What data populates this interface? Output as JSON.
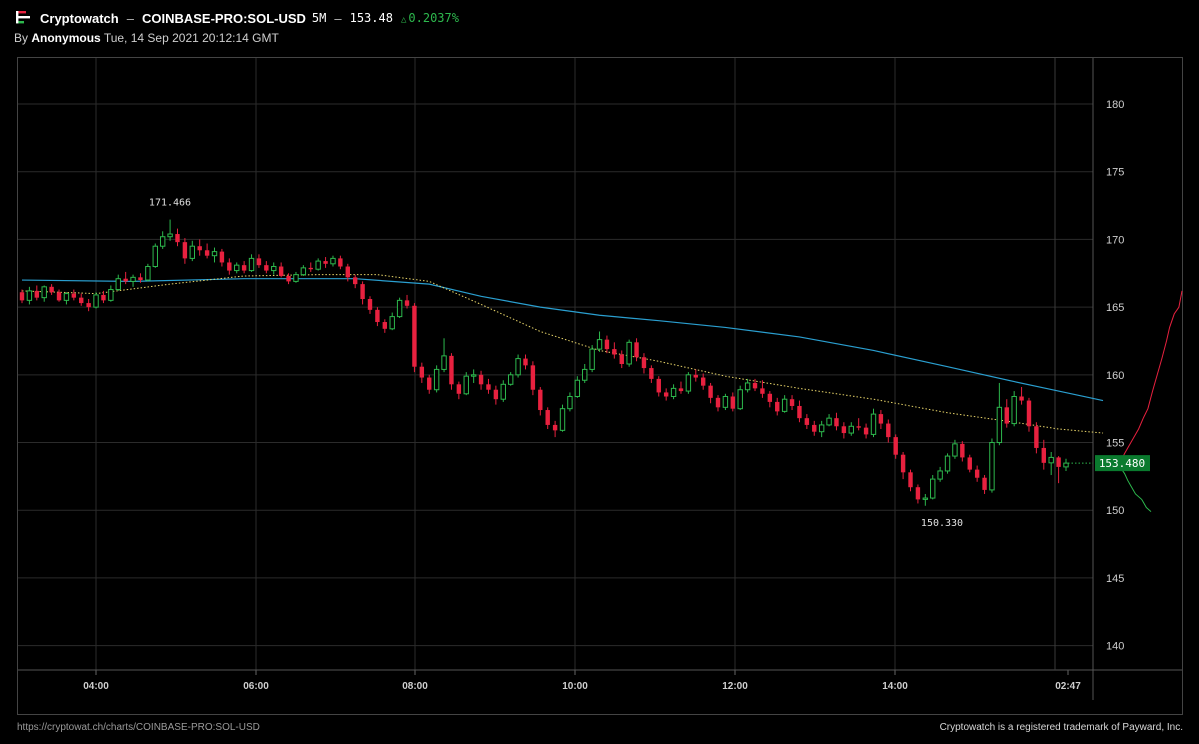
{
  "header": {
    "brand": "Cryptowatch",
    "separator": "–",
    "symbol": "COINBASE-PRO:SOL-USD",
    "interval": "5M",
    "price": "153.48",
    "change": "0.2037%",
    "by_prefix": "By",
    "author": "Anonymous",
    "timestamp": "Tue, 14 Sep 2021 20:12:14 GMT"
  },
  "footer": {
    "url": "https://cryptowat.ch/charts/COINBASE-PRO:SOL-USD",
    "trademark": "Cryptowatch is a registered trademark of Payward, Inc."
  },
  "colors": {
    "up": "#2db84d",
    "down": "#e8213f",
    "ma_long": "#2a9fd0",
    "ma_short": "#e8d56a",
    "grid": "#2b2b2b",
    "current_price_bg": "#0a7a2e"
  },
  "chart_data": {
    "type": "candlestick",
    "time_labels": [
      "04:00",
      "06:00",
      "08:00",
      "10:00",
      "12:00",
      "14:00",
      "02:47"
    ],
    "y_ticks": [
      140,
      145,
      150,
      155,
      160,
      165,
      170,
      175,
      180
    ],
    "ylim": [
      138.2,
      183.4
    ],
    "grid": true,
    "annotations": {
      "high_label": "171.466",
      "high_value": 171.466,
      "low_label": "150.330",
      "low_value": 150.33,
      "current_label": "153.480",
      "current_value": 153.48
    },
    "candles_ohlc": [
      [
        166.1,
        166.3,
        165.3,
        165.5
      ],
      [
        165.5,
        166.5,
        165.2,
        166.2
      ],
      [
        166.2,
        166.6,
        165.5,
        165.7
      ],
      [
        165.7,
        166.6,
        165.4,
        166.5
      ],
      [
        166.5,
        166.7,
        165.9,
        166.1
      ],
      [
        166.1,
        166.3,
        165.4,
        165.5
      ],
      [
        165.5,
        166.1,
        165.2,
        166.0
      ],
      [
        166.0,
        166.3,
        165.5,
        165.7
      ],
      [
        165.7,
        166.0,
        165.1,
        165.3
      ],
      [
        165.3,
        165.6,
        164.7,
        165.0
      ],
      [
        165.0,
        166.1,
        164.9,
        165.9
      ],
      [
        165.9,
        166.2,
        165.3,
        165.5
      ],
      [
        165.5,
        166.6,
        165.4,
        166.3
      ],
      [
        166.3,
        167.4,
        166.2,
        167.1
      ],
      [
        167.1,
        167.6,
        166.7,
        166.9
      ],
      [
        166.9,
        167.4,
        166.5,
        167.2
      ],
      [
        167.2,
        167.5,
        166.8,
        167.0
      ],
      [
        167.0,
        168.2,
        166.9,
        168.0
      ],
      [
        168.0,
        169.7,
        167.9,
        169.5
      ],
      [
        169.5,
        170.6,
        169.3,
        170.2
      ],
      [
        170.2,
        171.466,
        169.9,
        170.4
      ],
      [
        170.4,
        170.8,
        169.5,
        169.8
      ],
      [
        169.8,
        170.1,
        168.2,
        168.6
      ],
      [
        168.6,
        169.9,
        168.4,
        169.5
      ],
      [
        169.5,
        170.0,
        168.8,
        169.2
      ],
      [
        169.2,
        169.7,
        168.6,
        168.8
      ],
      [
        168.8,
        169.4,
        168.3,
        169.1
      ],
      [
        169.1,
        169.3,
        168.0,
        168.3
      ],
      [
        168.3,
        168.6,
        167.4,
        167.7
      ],
      [
        167.7,
        168.3,
        167.5,
        168.1
      ],
      [
        168.1,
        168.4,
        167.5,
        167.7
      ],
      [
        167.7,
        168.9,
        167.6,
        168.6
      ],
      [
        168.6,
        168.9,
        167.9,
        168.1
      ],
      [
        168.1,
        168.4,
        167.5,
        167.7
      ],
      [
        167.7,
        168.3,
        167.4,
        168.0
      ],
      [
        168.0,
        168.3,
        167.2,
        167.3
      ],
      [
        167.3,
        167.5,
        166.7,
        166.9
      ],
      [
        166.9,
        167.6,
        166.8,
        167.4
      ],
      [
        167.4,
        168.1,
        167.3,
        167.9
      ],
      [
        167.9,
        168.3,
        167.6,
        167.8
      ],
      [
        167.8,
        168.6,
        167.7,
        168.4
      ],
      [
        168.4,
        168.7,
        167.9,
        168.2
      ],
      [
        168.2,
        168.8,
        168.0,
        168.6
      ],
      [
        168.6,
        168.8,
        167.8,
        168.0
      ],
      [
        168.0,
        168.2,
        166.9,
        167.2
      ],
      [
        167.2,
        167.4,
        166.4,
        166.7
      ],
      [
        166.7,
        166.9,
        165.2,
        165.6
      ],
      [
        165.6,
        165.8,
        164.5,
        164.8
      ],
      [
        164.8,
        165.0,
        163.6,
        163.9
      ],
      [
        163.9,
        164.1,
        163.1,
        163.4
      ],
      [
        163.4,
        164.6,
        163.3,
        164.3
      ],
      [
        164.3,
        165.7,
        164.2,
        165.5
      ],
      [
        165.5,
        165.9,
        164.9,
        165.1
      ],
      [
        165.1,
        165.3,
        160.2,
        160.6
      ],
      [
        160.6,
        160.9,
        159.4,
        159.8
      ],
      [
        159.8,
        160.0,
        158.6,
        158.9
      ],
      [
        158.9,
        160.7,
        158.7,
        160.4
      ],
      [
        160.4,
        162.7,
        160.2,
        161.4
      ],
      [
        161.4,
        161.6,
        158.9,
        159.3
      ],
      [
        159.3,
        159.5,
        158.2,
        158.6
      ],
      [
        158.6,
        160.2,
        158.5,
        159.9
      ],
      [
        159.9,
        160.4,
        159.4,
        160.0
      ],
      [
        160.0,
        160.3,
        158.9,
        159.3
      ],
      [
        159.3,
        159.7,
        158.6,
        158.9
      ],
      [
        158.9,
        159.2,
        157.8,
        158.2
      ],
      [
        158.2,
        159.6,
        158.0,
        159.3
      ],
      [
        159.3,
        160.2,
        159.2,
        160.0
      ],
      [
        160.0,
        161.5,
        159.8,
        161.2
      ],
      [
        161.2,
        161.5,
        160.4,
        160.7
      ],
      [
        160.7,
        161.0,
        158.5,
        158.9
      ],
      [
        158.9,
        159.1,
        157.0,
        157.4
      ],
      [
        157.4,
        157.6,
        156.0,
        156.3
      ],
      [
        156.3,
        156.6,
        155.4,
        155.9
      ],
      [
        155.9,
        157.8,
        155.8,
        157.5
      ],
      [
        157.5,
        158.7,
        157.3,
        158.4
      ],
      [
        158.4,
        159.9,
        158.3,
        159.6
      ],
      [
        159.6,
        160.8,
        159.4,
        160.4
      ],
      [
        160.4,
        162.2,
        160.2,
        161.9
      ],
      [
        161.9,
        163.2,
        161.7,
        162.6
      ],
      [
        162.6,
        162.9,
        161.6,
        161.9
      ],
      [
        161.9,
        162.4,
        161.2,
        161.5
      ],
      [
        161.5,
        161.8,
        160.5,
        160.8
      ],
      [
        160.8,
        162.6,
        160.6,
        162.4
      ],
      [
        162.4,
        162.7,
        161.0,
        161.3
      ],
      [
        161.3,
        161.6,
        160.1,
        160.5
      ],
      [
        160.5,
        160.7,
        159.4,
        159.7
      ],
      [
        159.7,
        159.9,
        158.4,
        158.7
      ],
      [
        158.7,
        159.0,
        158.1,
        158.4
      ],
      [
        158.4,
        159.3,
        158.2,
        159.0
      ],
      [
        159.0,
        159.5,
        158.6,
        158.8
      ],
      [
        158.8,
        160.2,
        158.6,
        160.0
      ],
      [
        160.0,
        160.4,
        159.5,
        159.8
      ],
      [
        159.8,
        160.1,
        158.9,
        159.2
      ],
      [
        159.2,
        159.4,
        157.9,
        158.3
      ],
      [
        158.3,
        158.5,
        157.3,
        157.6
      ],
      [
        157.6,
        158.6,
        157.4,
        158.4
      ],
      [
        158.4,
        158.7,
        157.3,
        157.5
      ],
      [
        157.5,
        159.2,
        157.4,
        158.9
      ],
      [
        158.9,
        159.7,
        158.7,
        159.4
      ],
      [
        159.4,
        159.7,
        158.8,
        159.0
      ],
      [
        159.0,
        159.6,
        158.3,
        158.6
      ],
      [
        158.6,
        158.8,
        157.6,
        158.0
      ],
      [
        158.0,
        158.3,
        157.0,
        157.3
      ],
      [
        157.3,
        158.5,
        157.2,
        158.2
      ],
      [
        158.2,
        158.5,
        157.4,
        157.7
      ],
      [
        157.7,
        158.1,
        156.5,
        156.8
      ],
      [
        156.8,
        157.1,
        156.0,
        156.3
      ],
      [
        156.3,
        156.6,
        155.5,
        155.8
      ],
      [
        155.8,
        156.6,
        155.4,
        156.3
      ],
      [
        156.3,
        157.1,
        156.2,
        156.8
      ],
      [
        156.8,
        157.2,
        155.9,
        156.2
      ],
      [
        156.2,
        156.5,
        155.3,
        155.7
      ],
      [
        155.7,
        156.5,
        155.5,
        156.2
      ],
      [
        156.2,
        156.8,
        155.9,
        156.1
      ],
      [
        156.1,
        156.4,
        155.3,
        155.6
      ],
      [
        155.6,
        157.5,
        155.4,
        157.1
      ],
      [
        157.1,
        157.4,
        156.0,
        156.4
      ],
      [
        156.4,
        156.7,
        155.0,
        155.4
      ],
      [
        155.4,
        155.6,
        153.8,
        154.1
      ],
      [
        154.1,
        154.3,
        152.3,
        152.8
      ],
      [
        152.8,
        153.0,
        151.4,
        151.7
      ],
      [
        151.7,
        151.9,
        150.5,
        150.8
      ],
      [
        150.8,
        151.2,
        150.33,
        150.9
      ],
      [
        150.9,
        152.6,
        150.8,
        152.3
      ],
      [
        152.3,
        153.2,
        152.1,
        152.9
      ],
      [
        152.9,
        154.2,
        152.7,
        154.0
      ],
      [
        154.0,
        155.2,
        153.8,
        154.9
      ],
      [
        154.9,
        155.1,
        153.6,
        153.9
      ],
      [
        153.9,
        154.1,
        152.8,
        153.0
      ],
      [
        153.0,
        153.3,
        152.1,
        152.4
      ],
      [
        152.4,
        152.6,
        151.2,
        151.5
      ],
      [
        151.5,
        155.3,
        151.3,
        155.0
      ],
      [
        155.0,
        159.4,
        154.8,
        157.6
      ],
      [
        157.6,
        158.2,
        156.1,
        156.4
      ],
      [
        156.4,
        158.8,
        156.2,
        158.4
      ],
      [
        158.4,
        159.1,
        157.8,
        158.1
      ],
      [
        158.1,
        158.3,
        155.8,
        156.2
      ],
      [
        156.2,
        156.5,
        154.2,
        154.6
      ],
      [
        154.6,
        155.2,
        153.0,
        153.5
      ],
      [
        153.5,
        154.3,
        152.6,
        153.9
      ],
      [
        153.9,
        154.0,
        152.0,
        153.2
      ],
      [
        153.2,
        153.8,
        152.9,
        153.48
      ]
    ],
    "ma_short": [
      [
        0,
        166.2
      ],
      [
        10,
        166.0
      ],
      [
        20,
        166.7
      ],
      [
        30,
        167.3
      ],
      [
        40,
        167.4
      ],
      [
        48,
        167.4
      ],
      [
        55,
        166.9
      ],
      [
        62,
        165.2
      ],
      [
        70,
        163.2
      ],
      [
        78,
        161.8
      ],
      [
        86,
        161.0
      ],
      [
        95,
        159.9
      ],
      [
        105,
        159.0
      ],
      [
        115,
        158.2
      ],
      [
        125,
        157.2
      ],
      [
        134,
        156.5
      ],
      [
        140,
        156.0
      ],
      [
        146,
        155.7
      ]
    ],
    "ma_long": [
      [
        0,
        167.0
      ],
      [
        15,
        166.9
      ],
      [
        30,
        167.1
      ],
      [
        45,
        167.1
      ],
      [
        55,
        166.7
      ],
      [
        62,
        165.8
      ],
      [
        70,
        165.0
      ],
      [
        78,
        164.4
      ],
      [
        86,
        164.0
      ],
      [
        95,
        163.5
      ],
      [
        105,
        162.8
      ],
      [
        115,
        161.8
      ],
      [
        125,
        160.6
      ],
      [
        134,
        159.5
      ],
      [
        140,
        158.8
      ],
      [
        146,
        158.1
      ]
    ],
    "bids_depth": [
      [
        0,
        153.5
      ],
      [
        6,
        154.2
      ],
      [
        12,
        154.8
      ],
      [
        18,
        155.4
      ],
      [
        24,
        156.0
      ],
      [
        30,
        156.8
      ],
      [
        36,
        157.5
      ],
      [
        42,
        158.8
      ],
      [
        48,
        160.0
      ],
      [
        54,
        161.2
      ],
      [
        60,
        162.5
      ],
      [
        64,
        163.5
      ],
      [
        70,
        164.5
      ],
      [
        76,
        165.0
      ],
      [
        80,
        166.2
      ]
    ],
    "asks_depth": [
      [
        0,
        153.2
      ],
      [
        6,
        152.7
      ],
      [
        10,
        152.2
      ],
      [
        14,
        151.8
      ],
      [
        20,
        151.2
      ],
      [
        28,
        150.8
      ],
      [
        34,
        150.2
      ],
      [
        40,
        149.9
      ]
    ]
  }
}
